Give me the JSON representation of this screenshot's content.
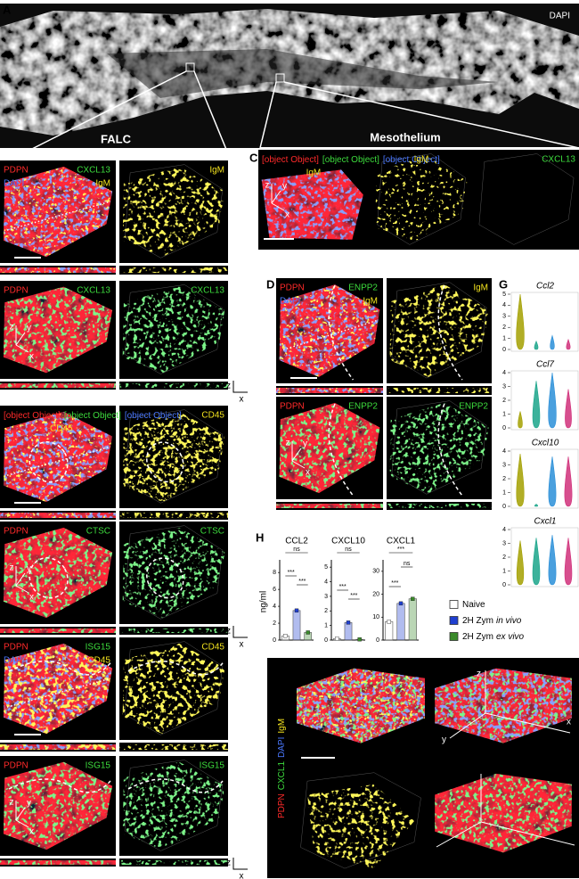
{
  "figure": {
    "A": {
      "label": "A",
      "channel": {
        "text": "DAPI",
        "color": "#ffffff"
      },
      "regions": [
        "FALC",
        "Mesothelium"
      ]
    },
    "B": {
      "label": "B",
      "tiles": [
        [
          [
            {
              "text": "PDPN",
              "color": "#ff2a2a"
            },
            {
              "text": "CXCL13",
              "color": "#3ddc3d"
            }
          ],
          [
            {
              "text": "DAPI",
              "color": "#4a78ff"
            },
            {
              "text": "IgM",
              "color": "#f2e21e"
            }
          ]
        ],
        [
          [
            {
              "text": "IgM",
              "color": "#f2e21e"
            }
          ]
        ],
        [
          [
            {
              "text": "PDPN",
              "color": "#ff2a2a"
            },
            {
              "text": "CXCL13",
              "color": "#3ddc3d"
            }
          ]
        ],
        [
          [
            {
              "text": "CXCL13",
              "color": "#3ddc3d"
            }
          ]
        ]
      ],
      "axes": [
        "z",
        "y",
        "x"
      ],
      "strip_axes": [
        "z",
        "x"
      ]
    },
    "C": {
      "label": "C",
      "tiles": [
        [
          [
            {
              "text": "PDPN",
              "color": "#ff2a2a"
            },
            {
              "text": "CXCL13",
              "color": "#3ddc3d"
            },
            {
              "text": "DAPI",
              "color": "#4a78ff"
            }
          ],
          [
            {
              "text": "IgM",
              "color": "#f2e21e"
            }
          ]
        ],
        [
          [
            {
              "text": "IgM",
              "color": "#f2e21e"
            }
          ]
        ],
        [
          [
            {
              "text": "CXCL13",
              "color": "#3ddc3d"
            }
          ]
        ]
      ],
      "axes": [
        "z",
        "y",
        "x"
      ]
    },
    "D": {
      "label": "D",
      "tiles": [
        [
          [
            {
              "text": "PDPN",
              "color": "#ff2a2a"
            },
            {
              "text": "ENPP2",
              "color": "#3ddc3d"
            }
          ],
          [
            {
              "text": "DAPI",
              "color": "#4a78ff"
            },
            {
              "text": "IgM",
              "color": "#f2e21e"
            }
          ]
        ],
        [
          [
            {
              "text": "IgM",
              "color": "#f2e21e"
            }
          ]
        ],
        [
          [
            {
              "text": "PDPN",
              "color": "#ff2a2a"
            },
            {
              "text": "ENPP2",
              "color": "#3ddc3d"
            }
          ]
        ],
        [
          [
            {
              "text": "ENPP2",
              "color": "#3ddc3d"
            }
          ]
        ]
      ],
      "axes": [
        "z",
        "y",
        "x"
      ]
    },
    "E": {
      "label": "E",
      "tiles": [
        [
          [
            {
              "text": "PDPN",
              "color": "#ff2a2a"
            },
            {
              "text": "CTSC",
              "color": "#3ddc3d"
            },
            {
              "text": "DAPI",
              "color": "#4a78ff"
            }
          ],
          [
            {
              "text": "CD45",
              "color": "#f2e21e"
            }
          ]
        ],
        [
          [
            {
              "text": "CD45",
              "color": "#f2e21e"
            }
          ]
        ],
        [
          [
            {
              "text": "PDPN",
              "color": "#ff2a2a"
            },
            {
              "text": "CTSC",
              "color": "#3ddc3d"
            }
          ]
        ],
        [
          [
            {
              "text": "CTSC",
              "color": "#3ddc3d"
            }
          ]
        ]
      ],
      "axes": [
        "z",
        "y",
        "x"
      ],
      "strip_axes": [
        "z",
        "x"
      ]
    },
    "F": {
      "label": "F",
      "tiles": [
        [
          [
            {
              "text": "PDPN",
              "color": "#ff2a2a"
            },
            {
              "text": "ISG15",
              "color": "#3ddc3d"
            }
          ],
          [
            {
              "text": "DAPI",
              "color": "#4a78ff"
            },
            {
              "text": "CD45",
              "color": "#f2e21e"
            }
          ]
        ],
        [
          [
            {
              "text": "CD45",
              "color": "#f2e21e"
            }
          ]
        ],
        [
          [
            {
              "text": "PDPN",
              "color": "#ff2a2a"
            },
            {
              "text": "ISG15",
              "color": "#3ddc3d"
            }
          ]
        ],
        [
          [
            {
              "text": "ISG15",
              "color": "#3ddc3d"
            }
          ]
        ]
      ],
      "axes": [
        "z",
        "y",
        "x"
      ],
      "strip_axes": [
        "z",
        "x"
      ]
    },
    "G": {
      "label": "G",
      "violin_colors": [
        "#a3a000",
        "#1aa58a",
        "#2a8fd8",
        "#d0307a"
      ],
      "plots": [
        {
          "title": "Ccl2",
          "yticks": [
            0,
            1,
            2,
            3,
            4,
            5
          ]
        },
        {
          "title": "Ccl7",
          "yticks": [
            0,
            1,
            2,
            3,
            4
          ]
        },
        {
          "title": "Cxcl10",
          "yticks": [
            0,
            1,
            2,
            3,
            4
          ]
        },
        {
          "title": "Cxcl1",
          "yticks": [
            0,
            1,
            2,
            3,
            4
          ]
        }
      ]
    },
    "H": {
      "label": "H",
      "y_label": "ng/ml",
      "legend": [
        {
          "name": "Naive",
          "color": "#ffffff"
        },
        {
          "name": "2H Zym",
          "italic": "in vivo",
          "color": "#1f3fd0"
        },
        {
          "name": "2H Zym",
          "italic": "ex vivo",
          "color": "#3a8a2a"
        }
      ]
    },
    "I": {
      "label": "I",
      "channels": [
        {
          "text": "PDPN",
          "color": "#ff2a2a"
        },
        {
          "text": "CXCL1",
          "color": "#3ddc3d"
        },
        {
          "text": "DAPI",
          "color": "#4a78ff"
        },
        {
          "text": "IgM",
          "color": "#f2e21e"
        }
      ],
      "axes": [
        "z",
        "y",
        "x"
      ]
    }
  },
  "chart_data": [
    {
      "type": "bar",
      "title": "CCL2",
      "ylim": [
        0,
        9.5
      ],
      "yticks": [
        0,
        2,
        4,
        6,
        8
      ],
      "values": [
        0.5,
        3.5,
        0.9
      ],
      "significance": [
        "ns",
        "***",
        "***"
      ]
    },
    {
      "type": "bar",
      "title": "CXCL10",
      "ylim": [
        0,
        5.5
      ],
      "yticks": [
        0,
        1,
        2,
        3,
        4,
        5
      ],
      "values": [
        0.1,
        1.2,
        0.05
      ],
      "significance": [
        "ns",
        "***",
        "***"
      ]
    },
    {
      "type": "bar",
      "title": "CXCL1",
      "ylim": [
        0,
        35
      ],
      "yticks": [
        0,
        10,
        20,
        30
      ],
      "values": [
        8,
        16,
        18
      ],
      "significance": [
        "***",
        "ns",
        "***"
      ]
    }
  ]
}
